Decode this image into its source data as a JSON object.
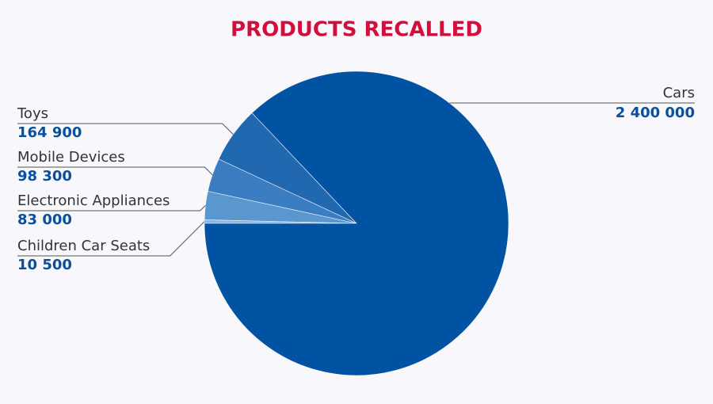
{
  "chart_data": {
    "type": "pie",
    "title": "PRODUCTS RECALLED",
    "categories": [
      "Cars",
      "Toys",
      "Mobile Devices",
      "Electronic Appliances",
      "Children Car Seats"
    ],
    "values": [
      2400000,
      164900,
      98300,
      83000,
      10500
    ],
    "value_labels": [
      "2 400 000",
      "164 900",
      "98 300",
      "83 000",
      "10 500"
    ],
    "colors": [
      "#0052a2",
      "#2068b0",
      "#3a7ec1",
      "#5b97cf",
      "#8cb6df"
    ]
  }
}
